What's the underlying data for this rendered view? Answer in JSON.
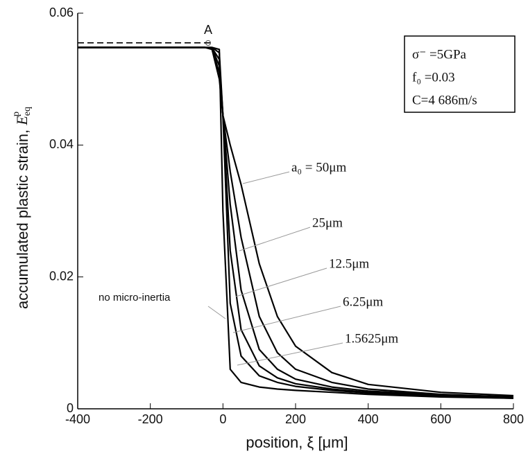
{
  "chart_data": {
    "type": "line",
    "xlabel": "position, ξ [μm]",
    "ylabel": "accumulated plastic strain, ",
    "ylabel_symbol": "E",
    "ylabel_sub": "eq",
    "ylabel_sup": "p",
    "x": [
      -400,
      -50,
      -30,
      -10,
      0,
      20,
      50,
      100,
      150,
      200,
      300,
      400,
      600,
      800
    ],
    "series": [
      {
        "name": "a₀ = 50μm",
        "color": "#000000",
        "values": [
          0.0548,
          0.0548,
          0.0545,
          0.05,
          0.0445,
          0.04,
          0.034,
          0.022,
          0.014,
          0.0095,
          0.0055,
          0.0037,
          0.0025,
          0.002
        ]
      },
      {
        "name": "25μm",
        "color": "#000000",
        "values": [
          0.0548,
          0.0548,
          0.0546,
          0.051,
          0.0445,
          0.036,
          0.026,
          0.014,
          0.0085,
          0.006,
          0.004,
          0.003,
          0.0022,
          0.0018
        ]
      },
      {
        "name": "12.5μm",
        "color": "#000000",
        "values": [
          0.0548,
          0.0548,
          0.0547,
          0.052,
          0.0445,
          0.031,
          0.018,
          0.009,
          0.006,
          0.0045,
          0.0033,
          0.0027,
          0.0021,
          0.0017
        ]
      },
      {
        "name": "6.25μm",
        "color": "#000000",
        "values": [
          0.0548,
          0.0548,
          0.0547,
          0.053,
          0.0445,
          0.024,
          0.012,
          0.0065,
          0.0047,
          0.0038,
          0.003,
          0.0025,
          0.002,
          0.0017
        ]
      },
      {
        "name": "1.5625μm",
        "color": "#000000",
        "values": [
          0.0548,
          0.0548,
          0.0548,
          0.054,
          0.0445,
          0.016,
          0.008,
          0.005,
          0.004,
          0.0034,
          0.0028,
          0.0024,
          0.0019,
          0.0016
        ]
      },
      {
        "name": "no micro-inertia",
        "color": "#000000",
        "values": [
          0.0548,
          0.0548,
          0.0548,
          0.0545,
          0.03,
          0.006,
          0.004,
          0.0033,
          0.003,
          0.0028,
          0.0025,
          0.0022,
          0.0018,
          0.0016
        ]
      },
      {
        "color": "#000000",
        "dashed": true,
        "values": [
          0.0555,
          0.0555,
          0.0555,
          null,
          null,
          null,
          null,
          null,
          null,
          null,
          null,
          null,
          null,
          null
        ]
      }
    ],
    "point_label": "A",
    "parameters": [
      "σ⁻ =5GPa",
      "f₀ =0.03",
      "C=4 686m/s"
    ],
    "xlim": [
      -400,
      800
    ],
    "xticks": [
      -400,
      -200,
      0,
      200,
      400,
      600,
      800
    ],
    "ylim": [
      0,
      0.06
    ],
    "yticks": [
      0,
      0.02,
      0.04,
      0.06
    ],
    "grid": false
  }
}
